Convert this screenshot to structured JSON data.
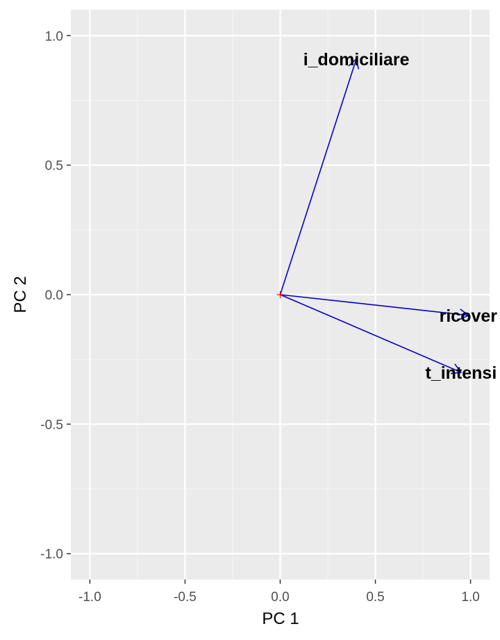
{
  "chart_data": {
    "type": "biplot",
    "xlabel": "PC 1",
    "ylabel": "PC 2",
    "xlim": [
      -1.1,
      1.1
    ],
    "ylim": [
      -1.1,
      1.1
    ],
    "x_ticks": [
      -1.0,
      -0.5,
      0.0,
      0.5,
      1.0
    ],
    "y_ticks": [
      -1.0,
      -0.5,
      0.0,
      0.5,
      1.0
    ],
    "x_tick_labels": [
      "-1.0",
      "-0.5",
      "0.0",
      "0.5",
      "1.0"
    ],
    "y_tick_labels": [
      "-1.0",
      "-0.5",
      "0.0",
      "0.5",
      "1.0"
    ],
    "grid": true,
    "origin": [
      0,
      0
    ],
    "vectors": [
      {
        "label": "i_domiciliare",
        "x": 0.4,
        "y": 0.91
      },
      {
        "label": "ricover",
        "x": 0.99,
        "y": -0.08
      },
      {
        "label": "t_intensi",
        "x": 0.95,
        "y": -0.3
      }
    ]
  },
  "colors": {
    "panel_background": "#ebebeb",
    "grid_major": "#ffffff",
    "grid_minor": "#f5f5f5",
    "arrow": "#0000cc",
    "origin_marker": "#ff0000",
    "text": "#000000",
    "tick_text": "#4d4d4d"
  }
}
